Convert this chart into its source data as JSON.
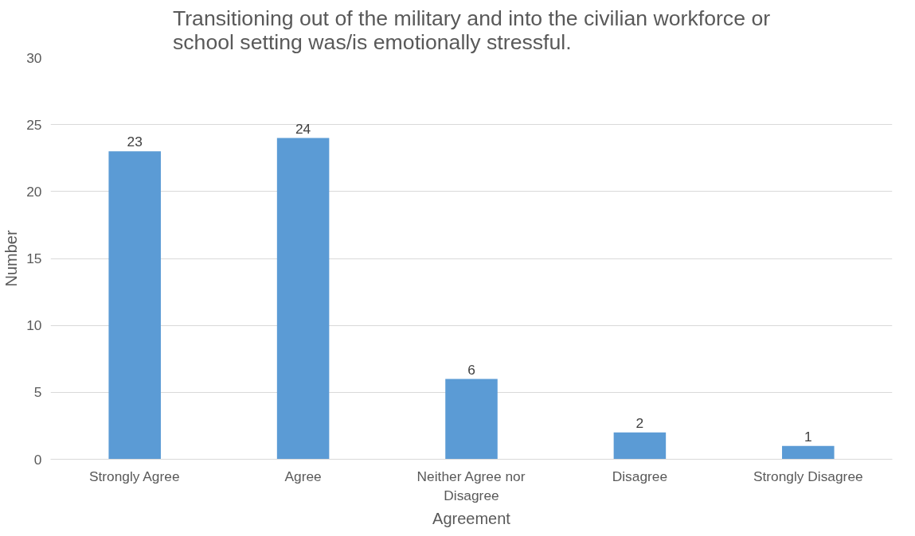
{
  "chart_data": {
    "type": "bar",
    "title": "Transitioning out of the military and into the civilian workforce or school setting was/is emotionally stressful.",
    "xlabel": "Agreement",
    "ylabel": "Number",
    "categories": [
      "Strongly Agree",
      "Agree",
      "Neither Agree nor Disagree",
      "Disagree",
      "Strongly Disagree"
    ],
    "values": [
      23,
      24,
      6,
      2,
      1
    ],
    "color": "#5b9bd5",
    "ylim": [
      0,
      30
    ],
    "yticks": [
      0,
      5,
      10,
      15,
      20,
      25,
      30
    ],
    "grid": "y",
    "data_labels": true
  }
}
